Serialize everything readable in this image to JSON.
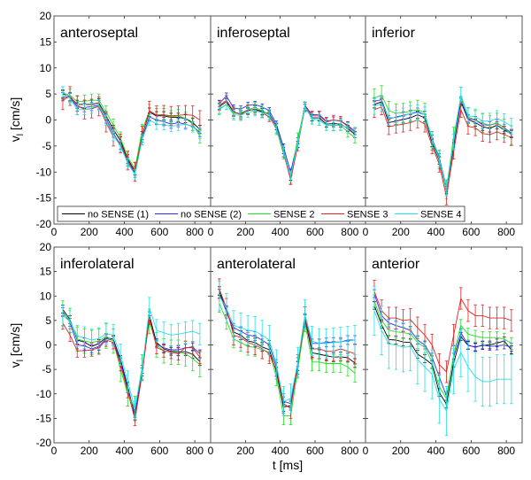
{
  "chart_data": {
    "type": "line",
    "xlabel": "t [ms]",
    "ylabel": {
      "main": "v",
      "sub": "l",
      "unit": " [cm/s]"
    },
    "xlim": [
      0,
      890
    ],
    "ylim": [
      -20,
      20
    ],
    "xticks": [
      "0",
      "200",
      "400",
      "600",
      "800"
    ],
    "yticks": [
      "20",
      "15",
      "10",
      "5",
      "0",
      "-5",
      "-10",
      "-15",
      "-20"
    ],
    "legend": {
      "placement": "bottom of top row",
      "entries": [
        "no SENSE (1)",
        "no SENSE (2)",
        "SENSE 2",
        "SENSE 3",
        "SENSE 4"
      ]
    },
    "series_colors": [
      "#000000",
      "#2a2aff",
      "#22dd22",
      "#e52222",
      "#22e0e6"
    ],
    "x": [
      50,
      91,
      132,
      173,
      214,
      255,
      296,
      337,
      378,
      419,
      460,
      501,
      542,
      583,
      624,
      665,
      706,
      747,
      788,
      829
    ],
    "panels": [
      {
        "title": "anteroseptal",
        "series": [
          {
            "name": "no SENSE (1)",
            "err": 0.8,
            "values": [
              5.0,
              4.5,
              3.0,
              3.0,
              3.0,
              3.3,
              0.8,
              -1.8,
              -4.0,
              -7.5,
              -9.8,
              -3.0,
              1.5,
              0.8,
              0.8,
              0.5,
              0.5,
              0.3,
              -0.5,
              -1.8
            ]
          },
          {
            "name": "no SENSE (2)",
            "err": 0.8,
            "values": [
              4.5,
              4.3,
              2.5,
              2.4,
              2.6,
              2.9,
              0.2,
              -2.5,
              -4.8,
              -8.0,
              -10.2,
              -3.5,
              0.6,
              0.0,
              -0.3,
              -0.8,
              -0.5,
              -0.8,
              -1.2,
              -2.4
            ]
          },
          {
            "name": "SENSE 2",
            "err": 1.2,
            "values": [
              5.2,
              4.8,
              3.5,
              3.6,
              3.8,
              3.8,
              1.5,
              -1.0,
              -3.5,
              -7.2,
              -9.3,
              -2.0,
              1.8,
              1.0,
              1.0,
              0.6,
              0.8,
              0.3,
              -0.8,
              -3.2
            ]
          },
          {
            "name": "SENSE 3",
            "err": 1.8,
            "values": [
              3.8,
              4.6,
              2.8,
              2.0,
              2.2,
              2.6,
              -0.5,
              -3.2,
              -4.5,
              -7.8,
              -10.0,
              -3.0,
              1.8,
              0.9,
              1.0,
              0.8,
              0.9,
              1.0,
              0.9,
              0.0
            ]
          },
          {
            "name": "SENSE 4",
            "err": 1.0,
            "values": [
              5.4,
              4.2,
              2.0,
              2.0,
              2.3,
              2.8,
              0.0,
              -3.0,
              -5.0,
              -8.3,
              -10.5,
              -3.8,
              0.0,
              -0.8,
              -0.9,
              -1.2,
              -1.0,
              -0.8,
              -1.3,
              -2.6
            ]
          }
        ]
      },
      {
        "title": "inferoseptal",
        "series": [
          {
            "name": "no SENSE (1)",
            "err": 0.6,
            "values": [
              2.6,
              3.5,
              1.5,
              1.2,
              1.8,
              2.1,
              1.6,
              1.2,
              -1.3,
              -5.9,
              -11.0,
              -4.7,
              2.4,
              0.4,
              0.4,
              -0.8,
              -0.7,
              -0.8,
              -1.6,
              -2.8
            ]
          },
          {
            "name": "no SENSE (2)",
            "err": 0.6,
            "values": [
              3.2,
              4.6,
              2.3,
              2.1,
              2.8,
              3.0,
              2.5,
              1.8,
              -0.8,
              -5.2,
              -10.0,
              -4.0,
              2.8,
              1.0,
              1.0,
              -0.2,
              0.0,
              -0.2,
              -1.0,
              -2.2
            ]
          },
          {
            "name": "SENSE 2",
            "err": 1.0,
            "values": [
              2.2,
              3.0,
              1.3,
              1.3,
              2.0,
              2.4,
              1.8,
              1.0,
              -1.8,
              -6.5,
              -11.2,
              -3.5,
              2.5,
              0.2,
              0.0,
              -1.0,
              -1.0,
              -1.0,
              -2.3,
              -3.4
            ]
          },
          {
            "name": "SENSE 3",
            "err": 0.9,
            "values": [
              2.8,
              3.8,
              1.6,
              1.0,
              1.9,
              2.0,
              1.4,
              0.6,
              -1.6,
              -6.2,
              -11.5,
              -5.0,
              2.6,
              0.8,
              0.8,
              -0.4,
              0.0,
              -0.2,
              -1.2,
              -2.5
            ]
          },
          {
            "name": "SENSE 4",
            "err": 1.0,
            "values": [
              2.0,
              3.0,
              1.0,
              0.9,
              1.5,
              1.8,
              1.4,
              1.0,
              -1.5,
              -6.0,
              -10.8,
              -4.5,
              2.5,
              0.2,
              0.0,
              -1.0,
              -1.1,
              -0.9,
              -1.5,
              -2.4
            ]
          }
        ]
      },
      {
        "title": "inferior",
        "series": [
          {
            "name": "no SENSE (1)",
            "err": 0.7,
            "values": [
              3.0,
              3.5,
              -0.5,
              -0.2,
              0.1,
              0.4,
              1.0,
              0.4,
              -4.4,
              -7.8,
              -13.5,
              -5.0,
              3.5,
              0.1,
              -0.5,
              -1.3,
              -1.6,
              -1.0,
              -1.9,
              -2.7
            ]
          },
          {
            "name": "no SENSE (2)",
            "err": 0.7,
            "values": [
              3.6,
              3.9,
              0.2,
              0.6,
              0.9,
              1.2,
              1.6,
              1.0,
              -3.6,
              -7.2,
              -13.0,
              -4.5,
              3.8,
              0.3,
              0.0,
              -0.9,
              -1.0,
              -0.6,
              -1.5,
              -2.5
            ]
          },
          {
            "name": "SENSE 2",
            "err": 1.8,
            "values": [
              4.2,
              4.8,
              1.8,
              1.3,
              1.4,
              1.7,
              2.0,
              1.4,
              -4.0,
              -7.6,
              -13.3,
              -3.2,
              4.5,
              0.6,
              0.0,
              -0.6,
              -1.0,
              -0.5,
              -1.6,
              -2.9
            ]
          },
          {
            "name": "SENSE 3",
            "err": 1.5,
            "values": [
              2.0,
              2.5,
              -1.3,
              -1.0,
              -0.8,
              -0.5,
              0.0,
              -0.8,
              -5.0,
              -8.5,
              -14.8,
              -6.0,
              2.0,
              -1.2,
              -1.5,
              -2.6,
              -2.8,
              -2.3,
              -2.8,
              -3.4
            ]
          },
          {
            "name": "SENSE 4",
            "err": 1.5,
            "values": [
              2.6,
              3.2,
              0.5,
              0.4,
              0.8,
              1.2,
              1.4,
              1.0,
              -3.8,
              -7.5,
              -13.2,
              -4.2,
              4.8,
              0.8,
              0.6,
              -0.2,
              -0.2,
              0.3,
              -0.3,
              -1.2
            ]
          }
        ]
      },
      {
        "title": "inferolateral",
        "series": [
          {
            "name": "no SENSE (1)",
            "err": 0.8,
            "values": [
              7.3,
              5.2,
              1.0,
              0.6,
              -0.3,
              0.3,
              1.5,
              1.2,
              -3.0,
              -8.5,
              -14.5,
              -5.5,
              6.0,
              0.5,
              -0.8,
              -1.3,
              -1.4,
              -1.4,
              -1.9,
              -3.4
            ]
          },
          {
            "name": "no SENSE (2)",
            "err": 0.8,
            "values": [
              6.8,
              4.6,
              0.0,
              -0.2,
              -0.8,
              -0.3,
              1.3,
              0.9,
              -3.5,
              -9.0,
              -14.0,
              -5.0,
              5.2,
              0.2,
              -0.6,
              -1.0,
              -1.0,
              -0.6,
              -0.4,
              -1.8
            ]
          },
          {
            "name": "SENSE 2",
            "err": 2.5,
            "values": [
              6.5,
              5.0,
              1.2,
              0.8,
              0.5,
              0.8,
              1.8,
              0.8,
              -5.0,
              -10.0,
              -13.0,
              -4.5,
              4.8,
              0.0,
              -1.2,
              -1.5,
              -1.5,
              -1.8,
              -2.8,
              -4.0
            ]
          },
          {
            "name": "SENSE 3",
            "err": 1.3,
            "values": [
              4.5,
              2.0,
              -1.2,
              -1.2,
              -1.0,
              -0.6,
              1.0,
              0.5,
              -4.0,
              -9.5,
              -15.2,
              -6.0,
              5.5,
              -0.5,
              -1.2,
              -1.5,
              -1.8,
              -0.5,
              -0.6,
              -2.5
            ]
          },
          {
            "name": "SENSE 4",
            "err": 2.2,
            "values": [
              6.0,
              4.8,
              1.8,
              1.5,
              1.0,
              1.3,
              2.3,
              2.0,
              -2.0,
              -7.5,
              -13.0,
              -5.0,
              7.5,
              3.0,
              2.5,
              2.0,
              2.2,
              2.5,
              2.8,
              2.2
            ]
          }
        ]
      },
      {
        "title": "anterolateral",
        "series": [
          {
            "name": "no SENSE (1)",
            "err": 0.9,
            "values": [
              11.0,
              7.1,
              2.6,
              2.0,
              0.8,
              0.5,
              -0.4,
              -1.0,
              -5.5,
              -12.7,
              -12.4,
              -4.3,
              5.3,
              -1.6,
              -1.9,
              -2.2,
              -2.5,
              -2.4,
              -2.6,
              -3.7
            ]
          },
          {
            "name": "no SENSE (2)",
            "err": 0.9,
            "values": [
              10.5,
              6.8,
              3.5,
              2.8,
              2.0,
              1.8,
              1.0,
              0.0,
              -4.5,
              -11.5,
              -12.0,
              -3.5,
              5.5,
              0.3,
              0.3,
              0.5,
              0.6,
              0.6,
              1.0,
              1.0
            ]
          },
          {
            "name": "SENSE 2",
            "err": 1.8,
            "values": [
              8.5,
              5.0,
              1.2,
              0.5,
              -0.3,
              -0.5,
              -1.0,
              -1.5,
              -6.5,
              -14.5,
              -14.5,
              -5.0,
              4.5,
              -3.5,
              -3.5,
              -3.8,
              -3.8,
              -3.8,
              -4.5,
              -5.8
            ]
          },
          {
            "name": "SENSE 3",
            "err": 2.0,
            "values": [
              11.5,
              7.5,
              2.0,
              1.5,
              0.5,
              0.0,
              -0.8,
              -1.8,
              -5.0,
              -12.0,
              -13.0,
              -4.0,
              5.8,
              -0.8,
              -0.8,
              -1.3,
              -1.3,
              -0.8,
              -1.3,
              -1.8
            ]
          },
          {
            "name": "SENSE 4",
            "err": 3.0,
            "values": [
              10.0,
              7.5,
              4.0,
              3.5,
              3.0,
              2.8,
              2.0,
              1.0,
              -4.0,
              -11.5,
              -11.0,
              -3.5,
              6.2,
              0.8,
              0.3,
              0.3,
              0.5,
              0.6,
              0.8,
              1.0
            ]
          }
        ]
      },
      {
        "title": "anterior",
        "series": [
          {
            "name": "no SENSE (1)",
            "err": 0.8,
            "values": [
              8.1,
              4.2,
              1.1,
              1.0,
              0.6,
              0.5,
              -1.9,
              -2.8,
              -4.0,
              -9.7,
              -12.1,
              -3.7,
              1.7,
              -0.1,
              -0.4,
              -0.1,
              0.0,
              0.4,
              0.8,
              -1.0
            ]
          },
          {
            "name": "no SENSE (2)",
            "err": 0.8,
            "values": [
              10.5,
              6.0,
              4.5,
              4.0,
              3.5,
              3.0,
              1.0,
              0.0,
              -2.5,
              -6.5,
              -10.5,
              -2.5,
              2.5,
              0.0,
              -0.5,
              0.0,
              -0.3,
              -0.2,
              0.0,
              -0.5
            ]
          },
          {
            "name": "SENSE 2",
            "err": 1.2,
            "values": [
              9.0,
              5.0,
              3.0,
              2.7,
              2.5,
              2.3,
              0.5,
              -0.5,
              -3.5,
              -8.5,
              -11.0,
              -2.0,
              4.0,
              2.2,
              1.8,
              1.5,
              1.5,
              1.5,
              1.2,
              0.3
            ]
          },
          {
            "name": "SENSE 3",
            "err": 2.2,
            "values": [
              11.0,
              7.0,
              5.5,
              5.5,
              5.0,
              5.2,
              3.5,
              2.0,
              0.0,
              -4.0,
              -5.5,
              2.0,
              9.5,
              7.0,
              6.0,
              6.0,
              5.5,
              5.5,
              5.5,
              5.0
            ]
          },
          {
            "name": "SENSE 4",
            "err": 5.0,
            "values": [
              7.0,
              3.0,
              0.2,
              0.0,
              -0.5,
              -0.3,
              -3.0,
              -4.5,
              -6.0,
              -11.0,
              -13.5,
              -5.0,
              -1.5,
              -4.5,
              -6.5,
              -7.5,
              -7.5,
              -7.0,
              -7.0,
              -7.0
            ]
          }
        ]
      }
    ]
  }
}
